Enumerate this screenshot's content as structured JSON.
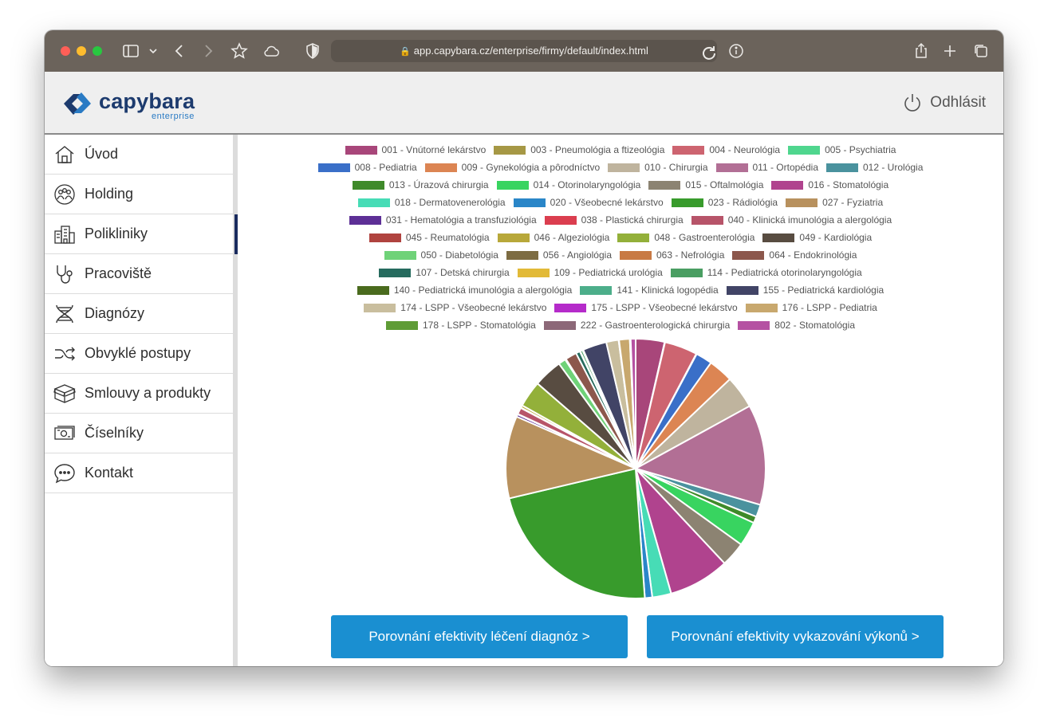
{
  "browser": {
    "url": "app.capybara.cz/enterprise/firmy/default/index.html",
    "traffic_lights": [
      "#ff5f57",
      "#febc2e",
      "#28c840"
    ]
  },
  "header": {
    "logo_word": "capybara",
    "logo_sub": "enterprise",
    "logout_label": "Odhlásit"
  },
  "sidebar": {
    "items": [
      {
        "label": "Úvod",
        "icon": "home-icon"
      },
      {
        "label": "Holding",
        "icon": "people-circle-icon"
      },
      {
        "label": "Polikliniky",
        "icon": "building-icon",
        "active": true
      },
      {
        "label": "Pracoviště",
        "icon": "stethoscope-icon"
      },
      {
        "label": "Diagnózy",
        "icon": "dna-icon"
      },
      {
        "label": "Obvyklé postupy",
        "icon": "shuffle-icon"
      },
      {
        "label": "Smlouvy a produkty",
        "icon": "boxes-icon"
      },
      {
        "label": "Číselníky",
        "icon": "money-icon"
      },
      {
        "label": "Kontakt",
        "icon": "chat-icon"
      }
    ]
  },
  "buttons": {
    "left": "Porovnání efektivity léčení diagnóz >",
    "right": "Porovnání efektivity vykazování výkonů >"
  },
  "chart_data": {
    "type": "pie",
    "legend_placement": "top",
    "series": [
      {
        "name": "001 - Vnútorné lekárstvo",
        "value": 3.5,
        "color": "#a8467a"
      },
      {
        "name": "003 - Pneumológia a ftizeológia",
        "value": 0.05,
        "color": "#a69845"
      },
      {
        "name": "004 - Neurológia",
        "value": 4.0,
        "color": "#cd6470"
      },
      {
        "name": "005 - Psychiatria",
        "value": 0.05,
        "color": "#4fd68e"
      },
      {
        "name": "008 - Pediatria",
        "value": 2.0,
        "color": "#3a6fc8"
      },
      {
        "name": "009 - Gynekológia a pôrodníctvo",
        "value": 3.0,
        "color": "#dc8553"
      },
      {
        "name": "010 - Chirurgia",
        "value": 4.0,
        "color": "#bfb49e"
      },
      {
        "name": "011 - Ortopédia",
        "value": 12.2,
        "color": "#b26f95"
      },
      {
        "name": "012 - Urológia",
        "value": 1.5,
        "color": "#4a929e"
      },
      {
        "name": "013 - Úrazová chirurgia",
        "value": 0.8,
        "color": "#3f8a2a"
      },
      {
        "name": "014 - Otorinolaryngológia",
        "value": 3.0,
        "color": "#38d460"
      },
      {
        "name": "015 - Oftalmológia",
        "value": 3.0,
        "color": "#8c8372"
      },
      {
        "name": "016 - Stomatológia",
        "value": 7.4,
        "color": "#b0438e"
      },
      {
        "name": "018 - Dermatovenerológia",
        "value": 2.3,
        "color": "#47dcb6"
      },
      {
        "name": "020 - Všeobecné lekárstvo",
        "value": 0.9,
        "color": "#2a86c8"
      },
      {
        "name": "023 - Rádiológia",
        "value": 21.9,
        "color": "#389b2c"
      },
      {
        "name": "027 - Fyziatria",
        "value": 10.0,
        "color": "#b8915e"
      },
      {
        "name": "031 - Hematológia a transfuziológia",
        "value": 0.3,
        "color": "#5d2f96"
      },
      {
        "name": "038 - Plastická chirurgia",
        "value": 0.05,
        "color": "#db3e4f"
      },
      {
        "name": "040 - Klinická imunológia a alergológia",
        "value": 0.8,
        "color": "#b75469"
      },
      {
        "name": "045 - Reumatológia",
        "value": 0.05,
        "color": "#b0433f"
      },
      {
        "name": "046 - Algeziológia",
        "value": 0.3,
        "color": "#b8a83a"
      },
      {
        "name": "048 - Gastroenterológia",
        "value": 3.2,
        "color": "#93b03a"
      },
      {
        "name": "049 - Kardiológia",
        "value": 3.5,
        "color": "#584c41"
      },
      {
        "name": "050 - Diabetológia",
        "value": 0.9,
        "color": "#6fd278"
      },
      {
        "name": "056 - Angiológia",
        "value": 0.05,
        "color": "#7d6c42"
      },
      {
        "name": "063 - Nefrológia",
        "value": 0.05,
        "color": "#c87a44"
      },
      {
        "name": "064 - Endokrinológia",
        "value": 1.4,
        "color": "#8c574c"
      },
      {
        "name": "107 - Detská chirurgia",
        "value": 0.5,
        "color": "#266b5e"
      },
      {
        "name": "109 - Pediatrická urológia",
        "value": 0.05,
        "color": "#e2ba38"
      },
      {
        "name": "114 - Pediatrická otorinolaryngológia",
        "value": 0.3,
        "color": "#4a9e62"
      },
      {
        "name": "140 - Pediatrická imunológia a alergológia",
        "value": 0.05,
        "color": "#4a6b1e"
      },
      {
        "name": "141 - Klinická logopédia",
        "value": 0.05,
        "color": "#4cae8a"
      },
      {
        "name": "155 - Pediatrická kardiológia",
        "value": 2.9,
        "color": "#414466"
      },
      {
        "name": "174 - LSPP - Všeobecné lekárstvo",
        "value": 1.5,
        "color": "#c9be9e"
      },
      {
        "name": "175 - LSPP - Všeobecné lekárstvo",
        "value": 0.05,
        "color": "#b52bca"
      },
      {
        "name": "176 - LSPP - Pediatria",
        "value": 1.3,
        "color": "#c8a86e"
      },
      {
        "name": "178 - LSPP - Stomatológia",
        "value": 0.05,
        "color": "#5f9c36"
      },
      {
        "name": "222 - Gastroenterologická chirurgia",
        "value": 0.05,
        "color": "#8c6878"
      },
      {
        "name": "802 - Stomatológia",
        "value": 0.6,
        "color": "#b552a2"
      }
    ],
    "legend_rows": [
      [
        0,
        1,
        2,
        3
      ],
      [
        4,
        5,
        6,
        7,
        8
      ],
      [
        9,
        10,
        11,
        12
      ],
      [
        13,
        14,
        15,
        16
      ],
      [
        17,
        18,
        19
      ],
      [
        20,
        21,
        22,
        23
      ],
      [
        24,
        25,
        26,
        27
      ],
      [
        28,
        29,
        30
      ],
      [
        31,
        32,
        33
      ],
      [
        34,
        35,
        36
      ],
      [
        37,
        38,
        39
      ]
    ]
  }
}
